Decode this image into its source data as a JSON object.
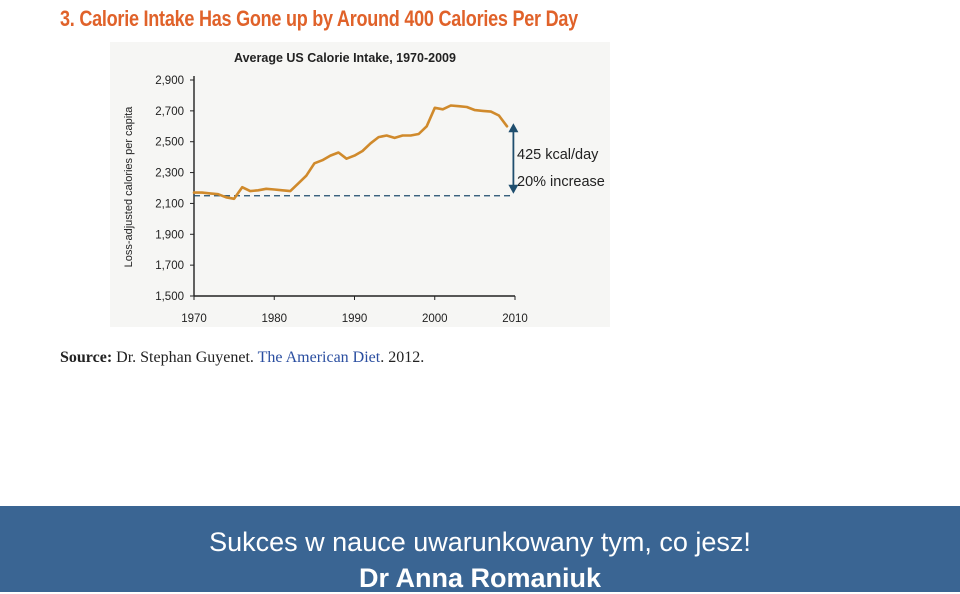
{
  "slide": {
    "headline": "3. Calorie Intake Has Gone up by Around 400 Calories Per Day",
    "source_label": "Source:",
    "source_author": " Dr. Stephan Guyenet. ",
    "source_title": "The American Diet",
    "source_year": ". 2012."
  },
  "footer": {
    "line1": "Sukces w nauce uwarunkowany tym, co jesz!",
    "line2": "Dr Anna Romaniuk"
  },
  "colors": {
    "headline": "#e0622a",
    "line": "#d08a2c",
    "annotation": "#1f4e6e",
    "footer_bg": "#3a6593"
  },
  "chart_data": {
    "type": "line",
    "title": "Average US Calorie Intake, 1970-2009",
    "xlabel": "",
    "ylabel": "Loss-adjusted calories per capita",
    "xlim": [
      1970,
      2010
    ],
    "ylim": [
      1500,
      2900
    ],
    "xticks": [
      1970,
      1980,
      1990,
      2000,
      2010
    ],
    "yticks": [
      1500,
      1700,
      1900,
      2100,
      2300,
      2500,
      2700,
      2900
    ],
    "ytick_labels": [
      "1,500",
      "1,700",
      "1,900",
      "2,100",
      "2,300",
      "2,500",
      "2,700",
      "2,900"
    ],
    "xtick_labels": [
      "1970",
      "1980",
      "1990",
      "2000",
      "2010"
    ],
    "grid": false,
    "series": [
      {
        "x": [
          1970,
          1971,
          1972,
          1973,
          1974,
          1975,
          1976,
          1977,
          1978,
          1979,
          1980,
          1981,
          1982,
          1983,
          1984,
          1985,
          1986,
          1987,
          1988,
          1989,
          1990,
          1991,
          1992,
          1993,
          1994,
          1995,
          1996,
          1997,
          1998,
          1999,
          2000,
          2001,
          2002,
          2003,
          2004,
          2005,
          2006,
          2007,
          2008,
          2009
        ],
        "values": [
          2170,
          2170,
          2165,
          2160,
          2140,
          2130,
          2205,
          2180,
          2185,
          2195,
          2190,
          2185,
          2180,
          2230,
          2280,
          2360,
          2380,
          2410,
          2430,
          2390,
          2410,
          2440,
          2490,
          2530,
          2540,
          2525,
          2540,
          2540,
          2550,
          2600,
          2720,
          2710,
          2735,
          2730,
          2725,
          2705,
          2700,
          2695,
          2670,
          2600
        ]
      }
    ],
    "baseline": 2150,
    "annotations": [
      "425 kcal/day",
      "20% increase"
    ]
  }
}
